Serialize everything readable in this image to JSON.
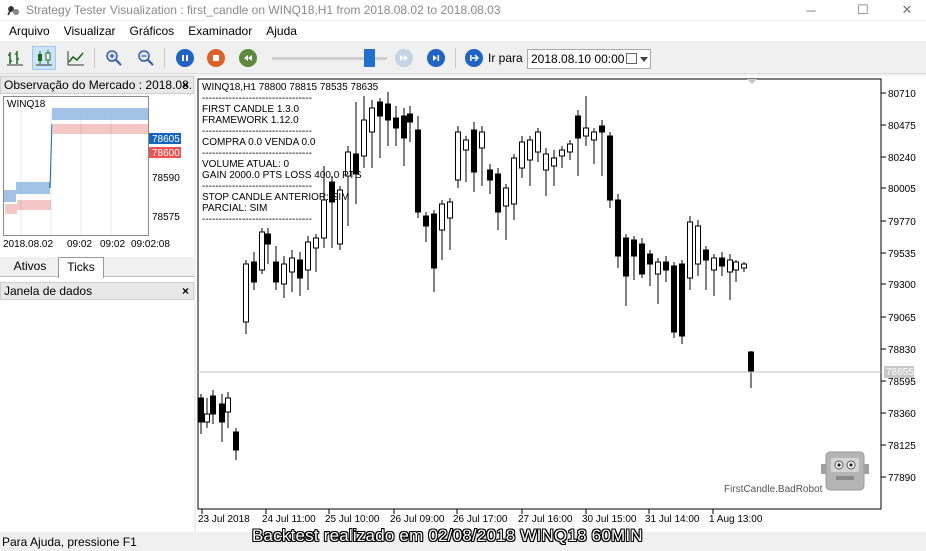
{
  "window": {
    "title": "Strategy Tester Visualization : first_candle on WINQ18,H1 from 2018.08.02 to 2018.08.03",
    "minimize": "─",
    "maximize": "☐",
    "close": "✕"
  },
  "menu": [
    "Arquivo",
    "Visualizar",
    "Gráficos",
    "Examinador",
    "Ajuda"
  ],
  "toolbar": {
    "goto_label": "Ir para",
    "goto_value": "2018.08.10 00:00",
    "speed_level": 0.85
  },
  "market_watch": {
    "header": "Observação do Mercado : 2018.08.(",
    "symbol": "WINQ18",
    "ask": "78605",
    "bid": "78600",
    "price_labels": [
      "78590",
      "78575"
    ],
    "time_labels": [
      "2018.08.02",
      "09:02",
      "09:02",
      "09:02:08"
    ],
    "tabs": [
      "Ativos",
      "Ticks"
    ]
  },
  "data_window": {
    "header": "Janela de dados"
  },
  "chart": {
    "symbol_line": "WINQ18,H1  78800 78815 78535 78635",
    "info_lines": [
      "FIRST CANDLE 1.3.0",
      "FRAMEWORK 1.12.0",
      "COMPRA 0.0 VENDA 0.0",
      "VOLUME ATUAL: 0",
      "GAIN 2000.0 PTS LOSS 400.0 PTS",
      "STOP CANDLE ANTERIOR: SIM",
      "PARCIAL: SIM"
    ],
    "separator": "---------------------------------",
    "current_price": "78655",
    "robot_label": "FirstCandle.BadRobot",
    "y_labels": [
      "80710",
      "80475",
      "80240",
      "80005",
      "79770",
      "79535",
      "79300",
      "79065",
      "78830",
      "78595",
      "78360",
      "78125",
      "77890"
    ],
    "x_labels": [
      "23 Jul 2018",
      "24 Jul 11:00",
      "25 Jul 10:00",
      "26 Jul 09:00",
      "26 Jul 17:00",
      "27 Jul 16:00",
      "30 Jul 15:00",
      "31 Jul 14:00",
      "1 Aug 13:00"
    ],
    "colors": {
      "bull": "#ffffff",
      "bear": "#000000",
      "ask": "#1565c0",
      "bid": "#e57373"
    }
  },
  "status": {
    "help": "Para Ajuda, pressione F1",
    "caption": "Backtest realizado em 02/08/2018 WINQ18 60MIN"
  }
}
